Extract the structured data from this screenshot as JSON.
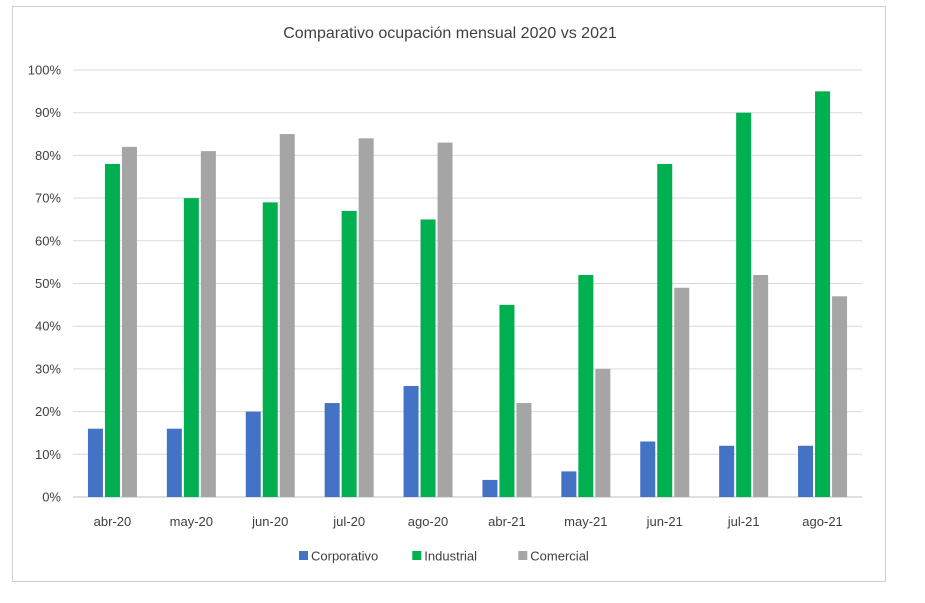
{
  "chart_data": {
    "type": "bar",
    "title": "Comparativo ocupación mensual 2020 vs 2021",
    "xlabel": "",
    "ylabel": "",
    "categories": [
      "abr-20",
      "may-20",
      "jun-20",
      "jul-20",
      "ago-20",
      "abr-21",
      "may-21",
      "jun-21",
      "jul-21",
      "ago-21"
    ],
    "series": [
      {
        "name": "Corporativo",
        "color": "#4472c4",
        "values": [
          16,
          16,
          20,
          22,
          26,
          4,
          6,
          13,
          12,
          12
        ]
      },
      {
        "name": "Industrial",
        "color": "#00b050",
        "values": [
          78,
          70,
          69,
          67,
          65,
          45,
          52,
          78,
          90,
          95
        ]
      },
      {
        "name": "Comercial",
        "color": "#a5a5a5",
        "values": [
          82,
          81,
          85,
          84,
          83,
          22,
          30,
          49,
          52,
          47
        ]
      }
    ],
    "ylim": [
      0,
      100
    ],
    "yticks": [
      "0%",
      "10%",
      "20%",
      "30%",
      "40%",
      "50%",
      "60%",
      "70%",
      "80%",
      "90%",
      "100%"
    ],
    "grid": true,
    "legend_position": "bottom"
  }
}
